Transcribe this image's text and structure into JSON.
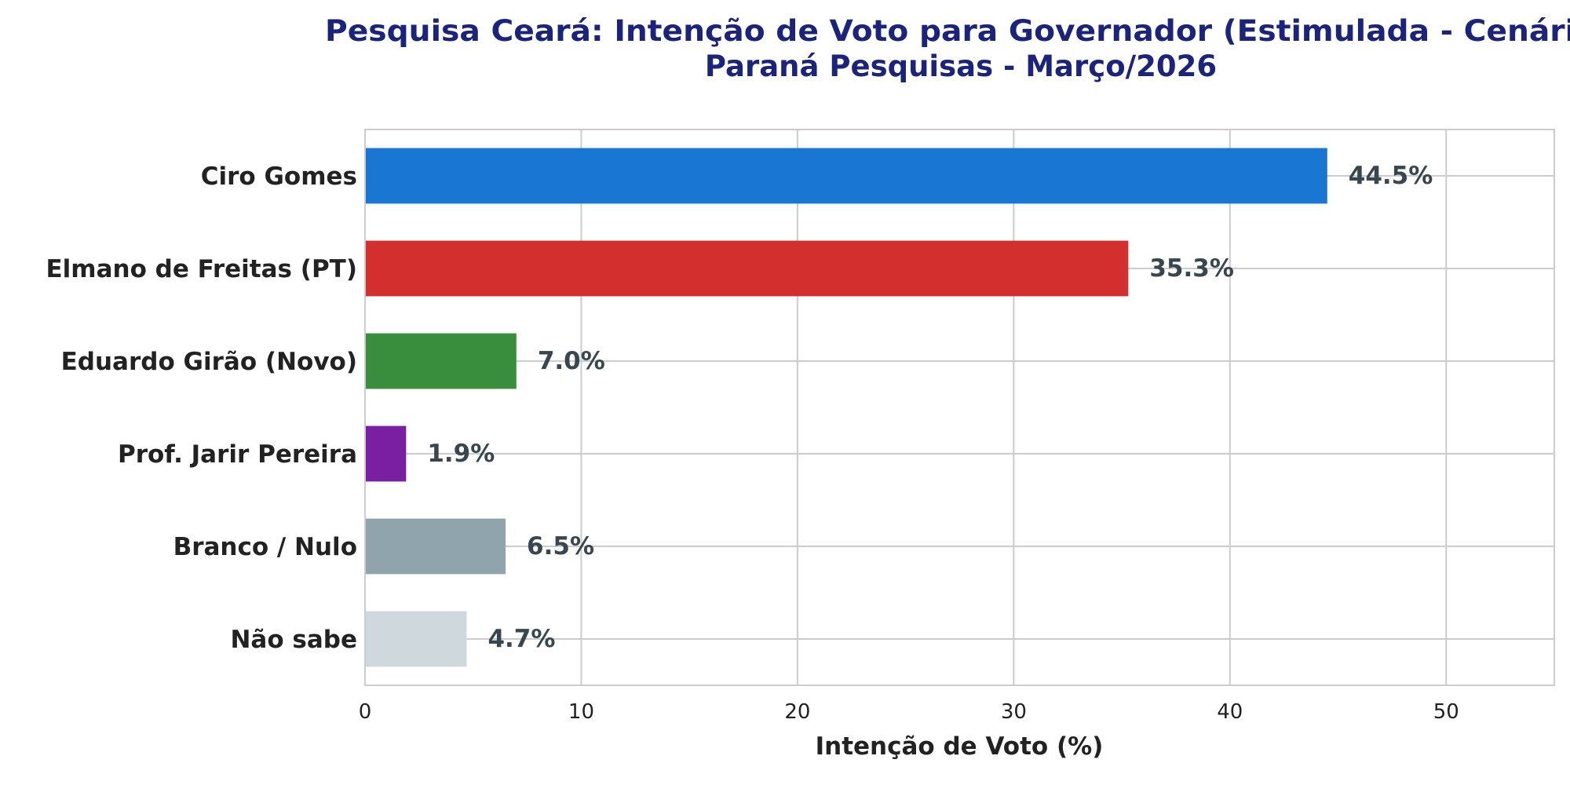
{
  "chart_data": {
    "type": "bar",
    "orientation": "horizontal",
    "title": "Pesquisa Ceará: Intenção de Voto para Governador (Estimulada - Cenário",
    "subtitle": "Paraná Pesquisas - Março/2026",
    "xlabel": "Intenção de Voto (%)",
    "ylabel": "",
    "xlim": [
      0,
      55
    ],
    "xticks": [
      0,
      10,
      20,
      30,
      40,
      50
    ],
    "grid": true,
    "legend": "none",
    "categories": [
      "Ciro Gomes",
      "Elmano de Freitas (PT)",
      "Eduardo Girão (Novo)",
      "Prof. Jarir Pereira",
      "Branco / Nulo",
      "Não sabe"
    ],
    "values": [
      44.5,
      35.3,
      7.0,
      1.9,
      6.5,
      4.7
    ],
    "value_labels": [
      "44.5%",
      "35.3%",
      "7.0%",
      "1.9%",
      "6.5%",
      "4.7%"
    ],
    "colors": [
      "#1976d2",
      "#d32f2f",
      "#388e3c",
      "#7b1fa2",
      "#90a4ae",
      "#cfd8dc"
    ]
  }
}
